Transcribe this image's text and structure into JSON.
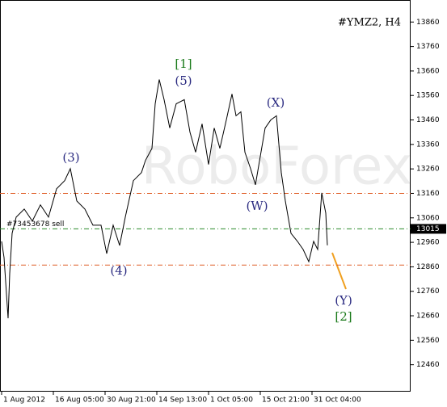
{
  "chart_data": {
    "type": "line",
    "title": "#YMZ2, H4",
    "watermark": "RoboForex",
    "x": [
      2,
      5,
      10,
      12,
      15,
      20,
      30,
      40,
      50,
      60,
      70,
      80,
      87,
      95,
      105,
      115,
      125,
      132,
      140,
      148,
      155,
      165,
      175,
      180,
      188,
      192,
      197,
      203,
      210,
      218,
      228,
      235,
      242,
      250,
      258,
      265,
      272,
      280,
      287,
      292,
      298,
      303,
      310,
      316,
      322,
      328,
      335,
      342,
      348,
      353,
      360,
      368,
      375,
      382,
      388,
      393,
      398,
      403,
      405
    ],
    "series": [
      {
        "color": "#000000",
        "values": [
          12964,
          12898,
          12650,
          12832,
          12997,
          13063,
          13096,
          13047,
          13113,
          13063,
          13179,
          13212,
          13261,
          13129,
          13096,
          13030,
          13030,
          12914,
          13030,
          12947,
          13063,
          13212,
          13245,
          13295,
          13344,
          13526,
          13625,
          13543,
          13427,
          13526,
          13543,
          13410,
          13328,
          13444,
          13278,
          13427,
          13344,
          13460,
          13566,
          13477,
          13493,
          13328,
          13261,
          13195,
          13311,
          13427,
          13460,
          13477,
          13245,
          13129,
          12997,
          12964,
          12931,
          12881,
          12964,
          12931,
          13162,
          13080,
          12948
        ]
      }
    ],
    "xlim": [
      0,
      508
    ],
    "xticks": [
      {
        "value": 2,
        "label": "1 Aug 2012"
      },
      {
        "value": 66,
        "label": "16 Aug 05:00"
      },
      {
        "value": 130,
        "label": "30 Aug 21:00"
      },
      {
        "value": 194,
        "label": "14 Sep 13:00"
      },
      {
        "value": 258,
        "label": "1 Oct 05:00"
      },
      {
        "value": 322,
        "label": "15 Oct 21:00"
      },
      {
        "value": 386,
        "label": "31 Oct 04:00"
      }
    ],
    "ylim": [
      12350,
      13950
    ],
    "yticks": [
      12460,
      12560,
      12660,
      12760,
      12860,
      12960,
      13060,
      13160,
      13260,
      13360,
      13460,
      13560,
      13660,
      13760,
      13860
    ],
    "levels": [
      {
        "value": 13160,
        "color": "#e0602a"
      },
      {
        "value": 13015,
        "color": "#2a8a2a",
        "label": "#73453678 sell"
      },
      {
        "value": 12867,
        "color": "#e0602a"
      }
    ],
    "last_price": 13015,
    "annotations": [
      {
        "text": "[1]",
        "color": "#1a7a1a"
      },
      {
        "text": "(5)",
        "color": "#2a2a80"
      },
      {
        "text": "(3)",
        "color": "#2a2a80"
      },
      {
        "text": "(4)",
        "color": "#2a2a80"
      },
      {
        "text": "(X)",
        "color": "#2a2a80"
      },
      {
        "text": "(W)",
        "color": "#2a2a80"
      },
      {
        "text": "(Y)",
        "color": "#2a2a80"
      },
      {
        "text": "[2]",
        "color": "#1a7a1a"
      }
    ]
  }
}
